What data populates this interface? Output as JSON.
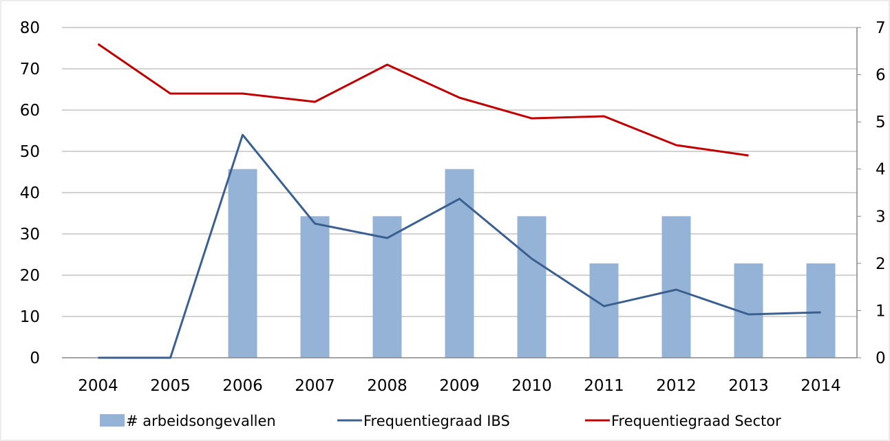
{
  "chart_data": {
    "type": "bar",
    "categories": [
      "2004",
      "2005",
      "2006",
      "2007",
      "2008",
      "2009",
      "2010",
      "2011",
      "2012",
      "2013",
      "2014"
    ],
    "y_left": {
      "ylim": [
        0,
        80
      ],
      "ticks": [
        0,
        10,
        20,
        30,
        40,
        50,
        60,
        70,
        80
      ]
    },
    "y_right": {
      "ylim": [
        0,
        7
      ],
      "ticks": [
        0,
        1,
        2,
        3,
        4,
        5,
        6,
        7
      ]
    },
    "series": [
      {
        "name": "# arbeidsongevallen",
        "kind": "bar",
        "axis": "right",
        "color": "#95b3d7",
        "values": [
          0,
          0,
          4,
          3,
          3,
          4,
          3,
          2,
          3,
          2,
          2
        ]
      },
      {
        "name": "Frequentiegraad IBS",
        "kind": "line",
        "axis": "left",
        "color": "#3b5f8f",
        "values": [
          0,
          0,
          54,
          32.5,
          29,
          38.5,
          24,
          12.5,
          16.5,
          10.5,
          11
        ]
      },
      {
        "name": "Frequentiegraad Sector",
        "kind": "line",
        "axis": "left",
        "color": "#c00000",
        "values": [
          76,
          64,
          64,
          62,
          71,
          63,
          58,
          58.5,
          51.5,
          49,
          null
        ]
      }
    ],
    "grid": true,
    "legend_position": "bottom"
  }
}
